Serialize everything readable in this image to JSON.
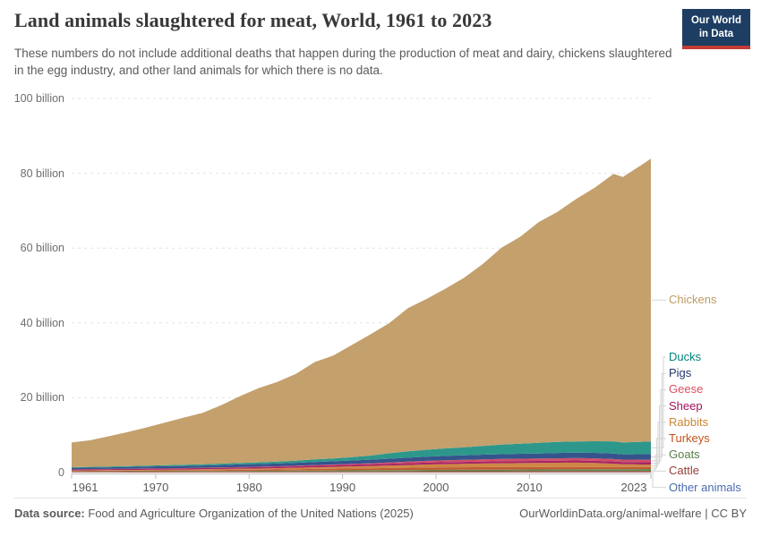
{
  "header": {
    "title": "Land animals slaughtered for meat, World, 1961 to 2023",
    "subtitle": "These numbers do not include additional deaths that happen during the production of meat and dairy, chickens slaughtered in the egg industry, and other land animals for which there is no data.",
    "logo": {
      "line1": "Our World",
      "line2": "in Data"
    }
  },
  "footer": {
    "source_label": "Data source:",
    "source": "Food and Agriculture Organization of the United Nations (2025)",
    "link": "OurWorldinData.org/animal-welfare",
    "separator": "|",
    "license": "CC BY"
  },
  "axes": {
    "y_ticks": [
      {
        "value": 0,
        "label": "0"
      },
      {
        "value": 20,
        "label": "20 billion"
      },
      {
        "value": 40,
        "label": "40 billion"
      },
      {
        "value": 60,
        "label": "60 billion"
      },
      {
        "value": 80,
        "label": "80 billion"
      },
      {
        "value": 100,
        "label": "100 billion"
      }
    ],
    "x_ticks": [
      1961,
      1970,
      1980,
      1990,
      2000,
      2010,
      2023
    ]
  },
  "colors": {
    "grid": "#e3e3e3",
    "axis": "#bdbdbd",
    "connector": "#d6d6d6"
  },
  "chart_data": {
    "type": "area",
    "stacked": true,
    "title": "Land animals slaughtered for meat, World, 1961 to 2023",
    "xlabel": "",
    "ylabel": "",
    "unit": "billion animals per year",
    "ylim": [
      0,
      100
    ],
    "grid": "dashed horizontal",
    "legend_position": "right, ordered largest to smallest, color-coded text with connector lines",
    "x": [
      1961,
      1963,
      1965,
      1967,
      1969,
      1971,
      1973,
      1975,
      1977,
      1979,
      1981,
      1983,
      1985,
      1987,
      1989,
      1991,
      1993,
      1995,
      1997,
      1999,
      2001,
      2003,
      2005,
      2007,
      2009,
      2011,
      2013,
      2015,
      2017,
      2019,
      2020,
      2021,
      2022,
      2023
    ],
    "series_note": "values in billions of animals, listed bottom-to-top of the stack; legend shows reverse order",
    "series": [
      {
        "name": "Other animals",
        "fill": "#8b93ae",
        "label_color": "#4c6bb0",
        "values": [
          0.04,
          0.04,
          0.04,
          0.05,
          0.05,
          0.05,
          0.05,
          0.06,
          0.06,
          0.06,
          0.06,
          0.06,
          0.07,
          0.07,
          0.07,
          0.07,
          0.07,
          0.07,
          0.08,
          0.08,
          0.08,
          0.08,
          0.08,
          0.08,
          0.08,
          0.08,
          0.09,
          0.09,
          0.09,
          0.09,
          0.09,
          0.09,
          0.09,
          0.09
        ]
      },
      {
        "name": "Cattle",
        "fill": "#a94a42",
        "label_color": "#9a3e36",
        "values": [
          0.17,
          0.18,
          0.18,
          0.19,
          0.19,
          0.2,
          0.2,
          0.21,
          0.21,
          0.22,
          0.22,
          0.23,
          0.23,
          0.24,
          0.24,
          0.25,
          0.25,
          0.26,
          0.26,
          0.27,
          0.28,
          0.28,
          0.29,
          0.29,
          0.3,
          0.3,
          0.31,
          0.31,
          0.32,
          0.32,
          0.32,
          0.32,
          0.33,
          0.33
        ]
      },
      {
        "name": "Goats",
        "fill": "#5c8c4c",
        "label_color": "#578145",
        "values": [
          0.11,
          0.12,
          0.12,
          0.13,
          0.14,
          0.14,
          0.15,
          0.16,
          0.17,
          0.18,
          0.19,
          0.2,
          0.22,
          0.24,
          0.26,
          0.28,
          0.3,
          0.32,
          0.34,
          0.36,
          0.38,
          0.4,
          0.42,
          0.43,
          0.44,
          0.45,
          0.46,
          0.47,
          0.48,
          0.5,
          0.5,
          0.51,
          0.52,
          0.53
        ]
      },
      {
        "name": "Turkeys",
        "fill": "#c05c33",
        "label_color": "#c4511d",
        "values": [
          0.13,
          0.14,
          0.16,
          0.17,
          0.19,
          0.2,
          0.22,
          0.23,
          0.26,
          0.29,
          0.31,
          0.34,
          0.38,
          0.43,
          0.47,
          0.51,
          0.54,
          0.58,
          0.62,
          0.65,
          0.67,
          0.66,
          0.67,
          0.68,
          0.66,
          0.65,
          0.64,
          0.63,
          0.62,
          0.6,
          0.58,
          0.57,
          0.56,
          0.55
        ]
      },
      {
        "name": "Rabbits",
        "fill": "#ce8744",
        "label_color": "#cc8633",
        "values": [
          0.12,
          0.13,
          0.14,
          0.15,
          0.17,
          0.18,
          0.2,
          0.22,
          0.25,
          0.28,
          0.3,
          0.34,
          0.38,
          0.44,
          0.5,
          0.55,
          0.6,
          0.65,
          0.72,
          0.8,
          0.85,
          0.9,
          0.95,
          1.0,
          1.05,
          1.1,
          1.12,
          1.15,
          1.05,
          0.85,
          0.75,
          0.7,
          0.65,
          0.62
        ]
      },
      {
        "name": "Sheep",
        "fill": "#a62466",
        "label_color": "#a2125c",
        "values": [
          0.27,
          0.28,
          0.29,
          0.3,
          0.31,
          0.32,
          0.32,
          0.33,
          0.34,
          0.35,
          0.37,
          0.38,
          0.4,
          0.42,
          0.44,
          0.46,
          0.47,
          0.48,
          0.49,
          0.5,
          0.51,
          0.52,
          0.54,
          0.55,
          0.55,
          0.54,
          0.55,
          0.57,
          0.58,
          0.6,
          0.59,
          0.61,
          0.63,
          0.64
        ]
      },
      {
        "name": "Geese",
        "fill": "#d04d68",
        "label_color": "#e04e60",
        "values": [
          0.03,
          0.035,
          0.04,
          0.045,
          0.05,
          0.055,
          0.06,
          0.07,
          0.08,
          0.09,
          0.1,
          0.12,
          0.14,
          0.16,
          0.18,
          0.2,
          0.26,
          0.33,
          0.42,
          0.48,
          0.52,
          0.55,
          0.58,
          0.6,
          0.61,
          0.63,
          0.64,
          0.65,
          0.66,
          0.66,
          0.65,
          0.66,
          0.67,
          0.68
        ]
      },
      {
        "name": "Pigs",
        "fill": "#35548c",
        "label_color": "#22356b",
        "values": [
          0.38,
          0.4,
          0.43,
          0.46,
          0.5,
          0.55,
          0.58,
          0.62,
          0.65,
          0.7,
          0.72,
          0.75,
          0.78,
          0.83,
          0.86,
          0.92,
          0.96,
          1.02,
          1.05,
          1.12,
          1.16,
          1.22,
          1.26,
          1.28,
          1.33,
          1.35,
          1.42,
          1.45,
          1.47,
          1.47,
          1.4,
          1.42,
          1.48,
          1.5
        ]
      },
      {
        "name": "Ducks",
        "fill": "#2e978b",
        "label_color": "#00847e",
        "values": [
          0.19,
          0.2,
          0.22,
          0.24,
          0.25,
          0.27,
          0.3,
          0.33,
          0.37,
          0.41,
          0.46,
          0.52,
          0.59,
          0.68,
          0.75,
          0.88,
          1.1,
          1.45,
          1.7,
          1.85,
          2.0,
          2.15,
          2.35,
          2.55,
          2.7,
          2.85,
          2.95,
          3.0,
          3.1,
          3.25,
          3.15,
          3.25,
          3.3,
          3.36
        ]
      },
      {
        "name": "Chickens",
        "fill": "#c4a06d",
        "label_color": "#be9b64",
        "values": [
          6.6,
          7.1,
          8.1,
          9.1,
          10.2,
          11.4,
          12.6,
          13.7,
          15.6,
          17.8,
          19.8,
          21.3,
          23.2,
          26.0,
          27.5,
          30.0,
          32.4,
          34.8,
          38.3,
          40.3,
          42.7,
          45.3,
          48.6,
          52.6,
          55.3,
          59.0,
          61.5,
          64.8,
          67.8,
          71.5,
          71.0,
          72.5,
          74.0,
          75.6
        ]
      }
    ]
  }
}
